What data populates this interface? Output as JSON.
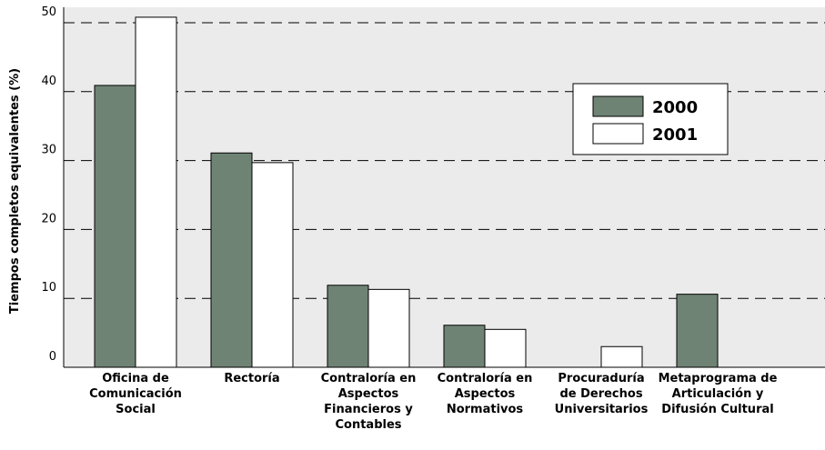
{
  "chart_data": {
    "type": "bar",
    "ylabel": "Tiempos completos equivalentes (%)",
    "categories": [
      "Oficina de\nComunicación\nSocial",
      "Rectoría",
      "Contraloría en\nAspectos\nFinancieros y\nContables",
      "Contraloría en\nAspectos\nNormativos",
      "Procuraduría\nde Derechos\nUniversitarios",
      "Metaprograma de\nArticulación y\nDifusión Cultural"
    ],
    "series": [
      {
        "name": "2000",
        "color": "#6f8374",
        "values": [
          40.9,
          31.1,
          11.9,
          6.1,
          0,
          10.6
        ]
      },
      {
        "name": "2001",
        "color": "#ffffff",
        "values": [
          50.8,
          29.7,
          11.3,
          5.5,
          3.0,
          0
        ]
      }
    ],
    "ylim": [
      0,
      50
    ],
    "yticks": [
      0,
      10,
      20,
      30,
      40,
      50
    ],
    "grid": true
  }
}
